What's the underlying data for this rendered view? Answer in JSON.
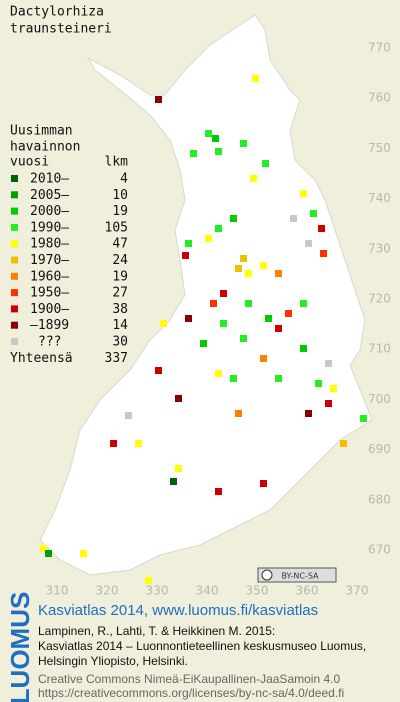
{
  "title": [
    "Dactylorhiza",
    "traunsteineri"
  ],
  "legend": {
    "heading": [
      "Uusimman",
      "havainnon"
    ],
    "column_labels": {
      "period": "vuosi",
      "count": "lkm"
    },
    "rows": [
      {
        "label": "2010–",
        "count": "4",
        "color": "#006400"
      },
      {
        "label": "2005–",
        "count": "10",
        "color": "#00a000"
      },
      {
        "label": "2000–",
        "count": "19",
        "color": "#00cc00"
      },
      {
        "label": "1990–",
        "count": "105",
        "color": "#22ee22"
      },
      {
        "label": "1980–",
        "count": "47",
        "color": "#ffff00"
      },
      {
        "label": "1970–",
        "count": "24",
        "color": "#f0c000"
      },
      {
        "label": "1960–",
        "count": "19",
        "color": "#ff8000"
      },
      {
        "label": "1950–",
        "count": "27",
        "color": "#ff3000"
      },
      {
        "label": "1900–",
        "count": "38",
        "color": "#cc0000"
      },
      {
        "label": "–1899",
        "count": "14",
        "color": "#880000"
      },
      {
        "label": "???",
        "count": "30",
        "color": "#c8c8c8"
      }
    ],
    "total": {
      "label": "Yhteensä",
      "count": "337"
    }
  },
  "grid": {
    "north": [
      770,
      760,
      750,
      740,
      730,
      720,
      710,
      700,
      690,
      680,
      670
    ],
    "east": [
      310,
      320,
      330,
      340,
      350,
      360,
      370
    ]
  },
  "license_badge": "BY-NC-SA",
  "logo": "LUOMUS",
  "footer": {
    "atlas": "Kasviatlas 2014, www.luomus.fi/kasviatlas",
    "citation": [
      "Lampinen, R., Lahti, T. & Heikkinen M. 2015:",
      "Kasviatlas 2014 – Luonnontieteellinen keskusmuseo Luomus,",
      "Helsingin Yliopisto, Helsinki."
    ],
    "license": [
      "Creative Commons Nimeä-EiKaupallinen-JaaSamoin 4.0",
      "https://creativecommons.org/licenses/by-nc-sa/4.0/deed.fi"
    ]
  }
}
